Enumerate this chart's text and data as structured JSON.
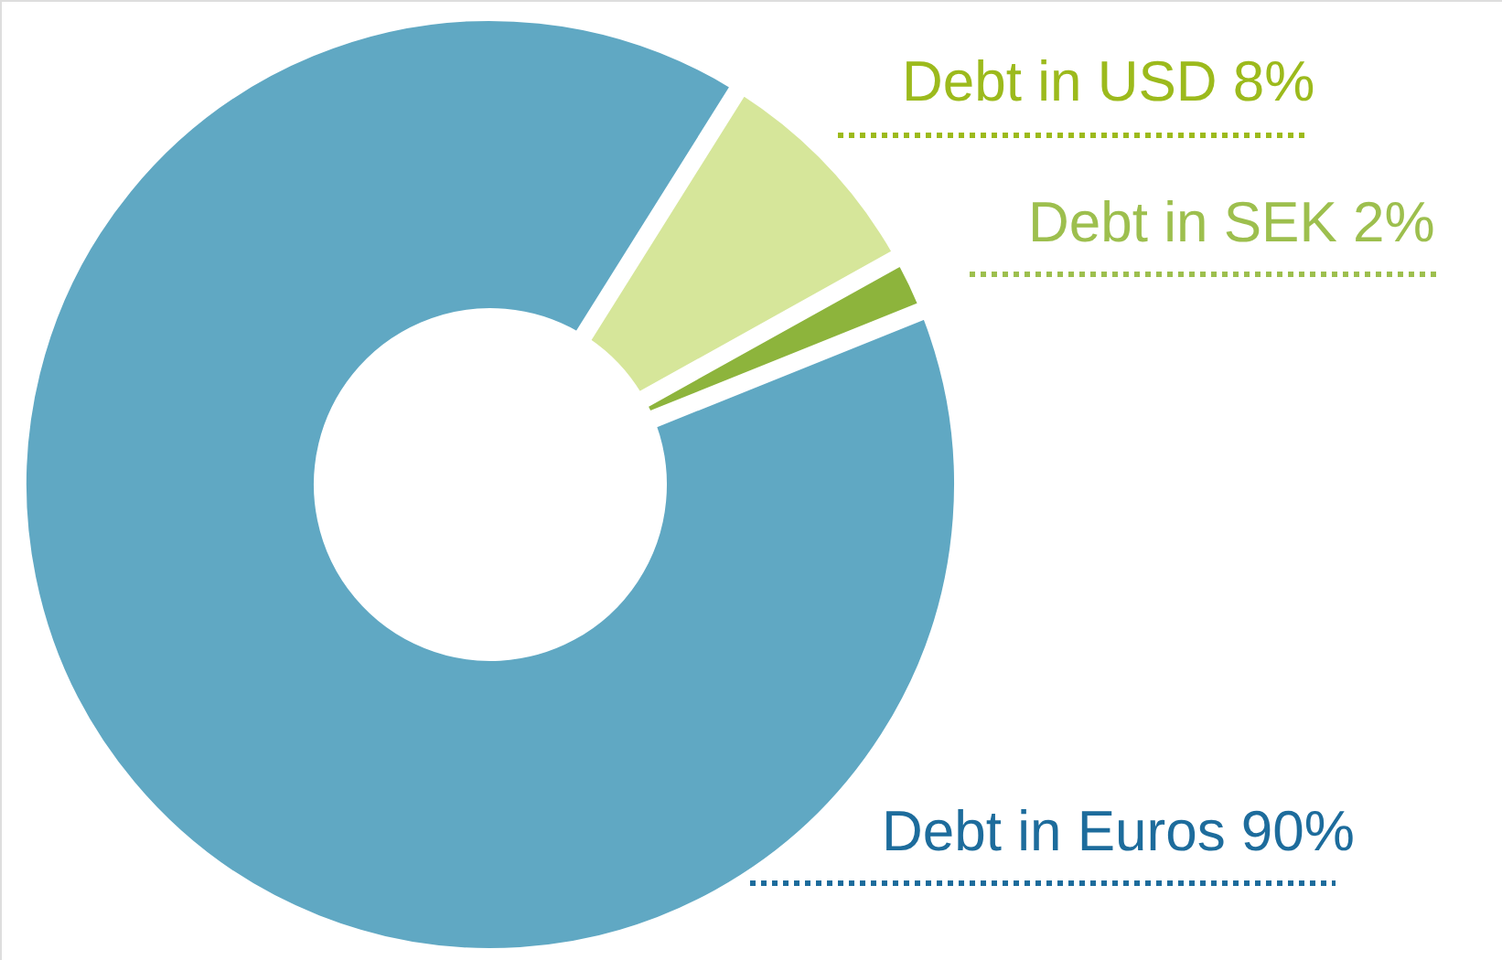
{
  "chart_data": {
    "type": "donut",
    "categories": [
      "Debt in USD",
      "Debt in SEK",
      "Debt in Euros"
    ],
    "values": [
      8,
      2,
      90
    ],
    "value_labels": [
      "8%",
      "2%",
      "90%"
    ],
    "colors": [
      "#d6e69a",
      "#8db43c",
      "#60a8c3"
    ]
  }
}
